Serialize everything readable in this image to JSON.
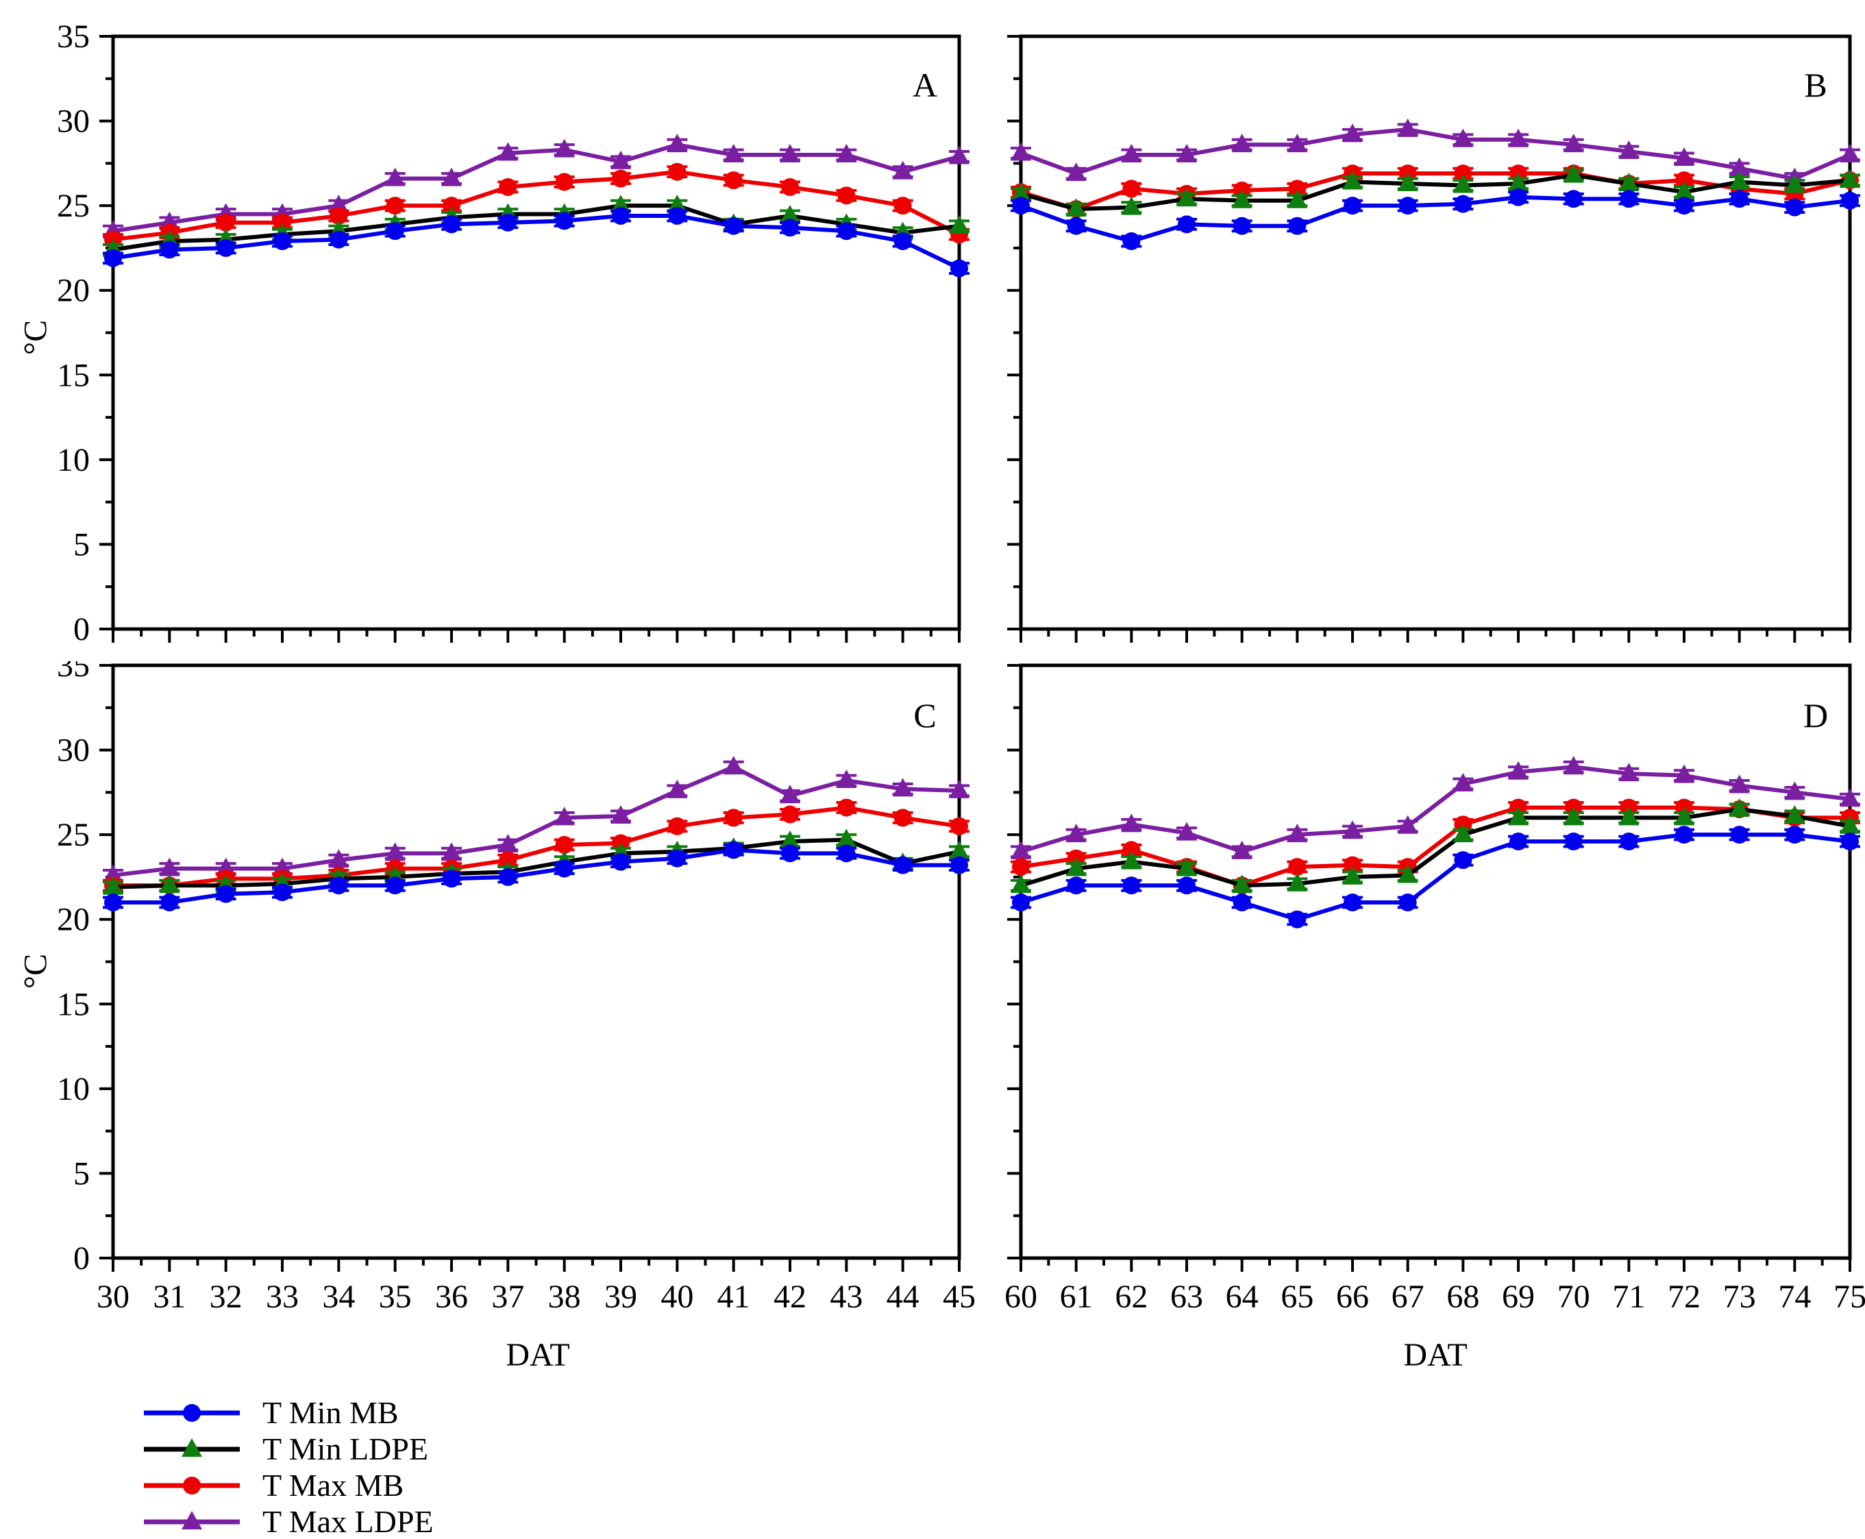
{
  "figure": {
    "ylabel": "°C",
    "xlabel": "DAT",
    "background": "#ffffff",
    "axis_color": "#000000",
    "ylim": [
      0,
      35
    ],
    "yticks": [
      0,
      5,
      10,
      15,
      20,
      25,
      30,
      35
    ],
    "grid": false,
    "legend_position": "bottom-left"
  },
  "legend": {
    "items": [
      {
        "label": "T Min MB",
        "line_color": "#0000ee",
        "marker": "circle",
        "marker_color": "#0000ee"
      },
      {
        "label": "T Min LDPE",
        "line_color": "#000000",
        "marker": "triangle",
        "marker_color": "#0e7e0e"
      },
      {
        "label": "T Max MB",
        "line_color": "#ee0000",
        "marker": "circle",
        "marker_color": "#ee0000"
      },
      {
        "label": "T Max LDPE",
        "line_color": "#7b1fa2",
        "marker": "triangle",
        "marker_color": "#7b1fa2"
      }
    ]
  },
  "chart_data": [
    {
      "type": "line",
      "panel_label": "A",
      "x": [
        30,
        31,
        32,
        33,
        34,
        35,
        36,
        37,
        38,
        39,
        40,
        41,
        42,
        43,
        44,
        45
      ],
      "error_bar": 0.3,
      "show_y_tick_labels": true,
      "show_x_tick_labels": false,
      "series": [
        {
          "name": "T Min MB",
          "values": [
            21.9,
            22.4,
            22.5,
            22.9,
            23.0,
            23.5,
            23.9,
            24.0,
            24.1,
            24.4,
            24.4,
            23.8,
            23.7,
            23.5,
            22.9,
            21.3
          ]
        },
        {
          "name": "T Min LDPE",
          "values": [
            22.4,
            22.9,
            23.0,
            23.3,
            23.5,
            23.9,
            24.3,
            24.5,
            24.5,
            25.0,
            25.0,
            23.9,
            24.4,
            23.9,
            23.4,
            23.8
          ]
        },
        {
          "name": "T Max MB",
          "values": [
            23.0,
            23.4,
            24.0,
            24.0,
            24.4,
            25.0,
            25.0,
            26.1,
            26.4,
            26.6,
            27.0,
            26.5,
            26.1,
            25.6,
            25.0,
            23.3
          ]
        },
        {
          "name": "T Max LDPE",
          "values": [
            23.5,
            24.0,
            24.5,
            24.5,
            25.0,
            26.6,
            26.6,
            28.1,
            28.3,
            27.6,
            28.6,
            28.0,
            28.0,
            28.0,
            27.0,
            27.9
          ]
        }
      ]
    },
    {
      "type": "line",
      "panel_label": "B",
      "x": [
        60,
        61,
        62,
        63,
        64,
        65,
        66,
        67,
        68,
        69,
        70,
        71,
        72,
        73,
        74,
        75
      ],
      "error_bar": 0.3,
      "show_y_tick_labels": false,
      "show_x_tick_labels": false,
      "series": [
        {
          "name": "T Min MB",
          "values": [
            25.0,
            23.8,
            22.9,
            23.9,
            23.8,
            23.8,
            25.0,
            25.0,
            25.1,
            25.5,
            25.4,
            25.4,
            25.0,
            25.4,
            24.9,
            25.3
          ]
        },
        {
          "name": "T Min LDPE",
          "values": [
            25.7,
            24.8,
            24.9,
            25.4,
            25.3,
            25.3,
            26.4,
            26.3,
            26.2,
            26.3,
            26.8,
            26.3,
            25.8,
            26.4,
            26.2,
            26.5
          ]
        },
        {
          "name": "T Max MB",
          "values": [
            25.8,
            24.8,
            26.0,
            25.7,
            25.9,
            26.0,
            26.9,
            26.9,
            26.9,
            26.9,
            26.9,
            26.3,
            26.5,
            26.0,
            25.7,
            26.5
          ]
        },
        {
          "name": "T Max LDPE",
          "values": [
            28.1,
            26.9,
            28.0,
            28.0,
            28.6,
            28.6,
            29.2,
            29.5,
            28.9,
            28.9,
            28.6,
            28.2,
            27.8,
            27.2,
            26.6,
            28.0
          ]
        }
      ]
    },
    {
      "type": "line",
      "panel_label": "C",
      "x": [
        30,
        31,
        32,
        33,
        34,
        35,
        36,
        37,
        38,
        39,
        40,
        41,
        42,
        43,
        44,
        45
      ],
      "error_bar": 0.3,
      "show_y_tick_labels": true,
      "show_x_tick_labels": true,
      "series": [
        {
          "name": "T Min MB",
          "values": [
            21.0,
            21.0,
            21.5,
            21.6,
            22.0,
            22.0,
            22.4,
            22.5,
            23.0,
            23.4,
            23.6,
            24.1,
            23.9,
            23.9,
            23.2,
            23.2
          ]
        },
        {
          "name": "T Min LDPE",
          "values": [
            21.9,
            22.0,
            22.0,
            22.1,
            22.4,
            22.5,
            22.7,
            22.8,
            23.4,
            23.9,
            24.0,
            24.2,
            24.6,
            24.7,
            23.3,
            24.0
          ]
        },
        {
          "name": "T Max MB",
          "values": [
            22.0,
            22.0,
            22.4,
            22.4,
            22.6,
            23.0,
            23.0,
            23.5,
            24.4,
            24.5,
            25.5,
            26.0,
            26.2,
            26.6,
            26.0,
            25.5
          ]
        },
        {
          "name": "T Max LDPE",
          "values": [
            22.6,
            23.0,
            23.0,
            23.0,
            23.5,
            23.9,
            23.9,
            24.4,
            26.0,
            26.1,
            27.6,
            29.0,
            27.3,
            28.2,
            27.7,
            27.6
          ]
        }
      ]
    },
    {
      "type": "line",
      "panel_label": "D",
      "x": [
        60,
        61,
        62,
        63,
        64,
        65,
        66,
        67,
        68,
        69,
        70,
        71,
        72,
        73,
        74,
        75
      ],
      "error_bar": 0.3,
      "show_y_tick_labels": false,
      "show_x_tick_labels": true,
      "series": [
        {
          "name": "T Min MB",
          "values": [
            21.0,
            22.0,
            22.0,
            22.0,
            21.0,
            20.0,
            21.0,
            21.0,
            23.5,
            24.6,
            24.6,
            24.6,
            25.0,
            25.0,
            25.0,
            24.6
          ]
        },
        {
          "name": "T Min LDPE",
          "values": [
            22.0,
            23.0,
            23.4,
            23.0,
            22.0,
            22.1,
            22.5,
            22.6,
            25.0,
            26.0,
            26.0,
            26.0,
            26.0,
            26.5,
            26.1,
            25.5
          ]
        },
        {
          "name": "T Max MB",
          "values": [
            23.1,
            23.6,
            24.1,
            23.1,
            22.0,
            23.1,
            23.2,
            23.1,
            25.6,
            26.6,
            26.6,
            26.6,
            26.6,
            26.5,
            26.0,
            26.0
          ]
        },
        {
          "name": "T Max LDPE",
          "values": [
            24.0,
            25.0,
            25.6,
            25.1,
            24.0,
            25.0,
            25.2,
            25.5,
            28.0,
            28.7,
            29.0,
            28.6,
            28.5,
            27.9,
            27.5,
            27.1
          ]
        }
      ]
    }
  ]
}
